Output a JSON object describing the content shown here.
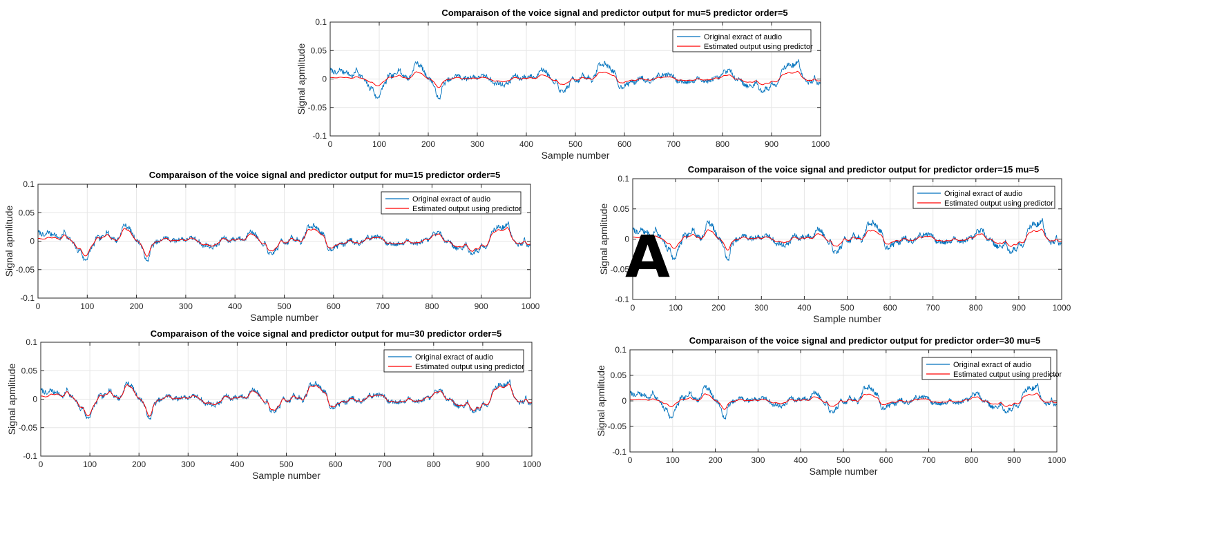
{
  "panel_letter": "A",
  "signal": {
    "n": 1001,
    "x_range": [
      0,
      1000
    ],
    "components": [
      [
        0.012,
        130,
        0.3
      ],
      [
        0.008,
        62,
        1.1
      ],
      [
        0.004,
        29,
        2.0
      ],
      [
        0.0025,
        17,
        0.7
      ],
      [
        0.0015,
        11,
        2.5
      ]
    ],
    "bursts": [
      [
        180,
        12,
        0.022
      ],
      [
        222,
        6,
        -0.026
      ],
      [
        565,
        20,
        0.012
      ],
      [
        955,
        15,
        0.018
      ],
      [
        880,
        18,
        -0.012
      ],
      [
        40,
        15,
        0.008
      ],
      [
        90,
        15,
        -0.008
      ]
    ],
    "noise": 0.004,
    "seed": 7
  },
  "chart_data": [
    {
      "type": "line",
      "title": "Comparaison of the voice signal and predictor output for mu=5  predictor order=5",
      "xlabel": "Sample number",
      "ylabel": "Signal apmlitude",
      "xlim": [
        0,
        1000
      ],
      "ylim": [
        -0.1,
        0.1
      ],
      "xticks": [
        "0",
        "100",
        "200",
        "300",
        "400",
        "500",
        "600",
        "700",
        "800",
        "900",
        "1000"
      ],
      "yticks": [
        "-0.1",
        "-0.05",
        "0",
        "0.05",
        "0.1"
      ],
      "grid": true,
      "legend_position": "top-right",
      "predictor_lag": 120,
      "predictor_gain": 0.45,
      "series": [
        {
          "name": "Original exract of audio",
          "color": "#0072bd",
          "values": "signal"
        },
        {
          "name": "Estimated output using predictor",
          "color": "#ff0000",
          "values": "predictor"
        }
      ]
    },
    {
      "type": "line",
      "title": "Comparaison of the voice signal and predictor output for mu=15    predictor order=5",
      "xlabel": "Sample number",
      "ylabel": "Signal apmlitude",
      "xlim": [
        0,
        1000
      ],
      "ylim": [
        -0.1,
        0.1
      ],
      "xticks": [
        "0",
        "100",
        "200",
        "300",
        "400",
        "500",
        "600",
        "700",
        "800",
        "900",
        "1000"
      ],
      "yticks": [
        "-0.1",
        "-0.05",
        "0",
        "0.05",
        "0.1"
      ],
      "grid": true,
      "legend_position": "top-right",
      "predictor_lag": 50,
      "predictor_gain": 0.8,
      "series": [
        {
          "name": "Original exract of audio",
          "color": "#0072bd",
          "values": "signal"
        },
        {
          "name": "Estimated output using predictor",
          "color": "#ff0000",
          "values": "predictor"
        }
      ]
    },
    {
      "type": "line",
      "title": "Comparaison of the voice signal and predictor output for predictor order=15   mu=5",
      "xlabel": "Sample number",
      "ylabel": "Signal apmlitude",
      "xlim": [
        0,
        1000
      ],
      "ylim": [
        -0.1,
        0.1
      ],
      "xticks": [
        "0",
        "100",
        "200",
        "300",
        "400",
        "500",
        "600",
        "700",
        "800",
        "900",
        "1000"
      ],
      "yticks": [
        "-0.1",
        "-0.05",
        "0",
        "0.05",
        "0.1"
      ],
      "grid": true,
      "legend_position": "top-right",
      "predictor_lag": 110,
      "predictor_gain": 0.55,
      "series": [
        {
          "name": "Original exract of audio",
          "color": "#0072bd",
          "values": "signal"
        },
        {
          "name": "Estimated output using predictor",
          "color": "#ff0000",
          "values": "predictor"
        }
      ]
    },
    {
      "type": "line",
      "title": "Comparaison of the voice signal and predictor output for mu=30  predictor order=5",
      "xlabel": "Sample number",
      "ylabel": "Signal apmlitude",
      "xlim": [
        0,
        1000
      ],
      "ylim": [
        -0.1,
        0.1
      ],
      "xticks": [
        "0",
        "100",
        "200",
        "300",
        "400",
        "500",
        "600",
        "700",
        "800",
        "900",
        "1000"
      ],
      "yticks": [
        "-0.1",
        "-0.05",
        "0",
        "0.05",
        "0.1"
      ],
      "grid": true,
      "legend_position": "top-right",
      "predictor_lag": 30,
      "predictor_gain": 0.9,
      "series": [
        {
          "name": "Original exract of audio",
          "color": "#0072bd",
          "values": "signal"
        },
        {
          "name": "Estimated output using predictor",
          "color": "#ff0000",
          "values": "predictor"
        }
      ]
    },
    {
      "type": "line",
      "title": "Comparaison of the voice signal and predictor output for predictor order=30   mu=5",
      "xlabel": "Sample number",
      "ylabel": "Signal apmlitude",
      "xlim": [
        0,
        1000
      ],
      "ylim": [
        -0.1,
        0.1
      ],
      "xticks": [
        "0",
        "100",
        "200",
        "300",
        "400",
        "500",
        "600",
        "700",
        "800",
        "900",
        "1000"
      ],
      "yticks": [
        "-0.1",
        "-0.05",
        "0",
        "0.05",
        "0.1"
      ],
      "grid": true,
      "legend_position": "top-right",
      "predictor_lag": 170,
      "predictor_gain": 0.5,
      "series": [
        {
          "name": "Original exract of audio",
          "color": "#0072bd",
          "values": "signal"
        },
        {
          "name": "Estimated cutput using predictor",
          "color": "#ff0000",
          "values": "predictor"
        }
      ]
    }
  ]
}
